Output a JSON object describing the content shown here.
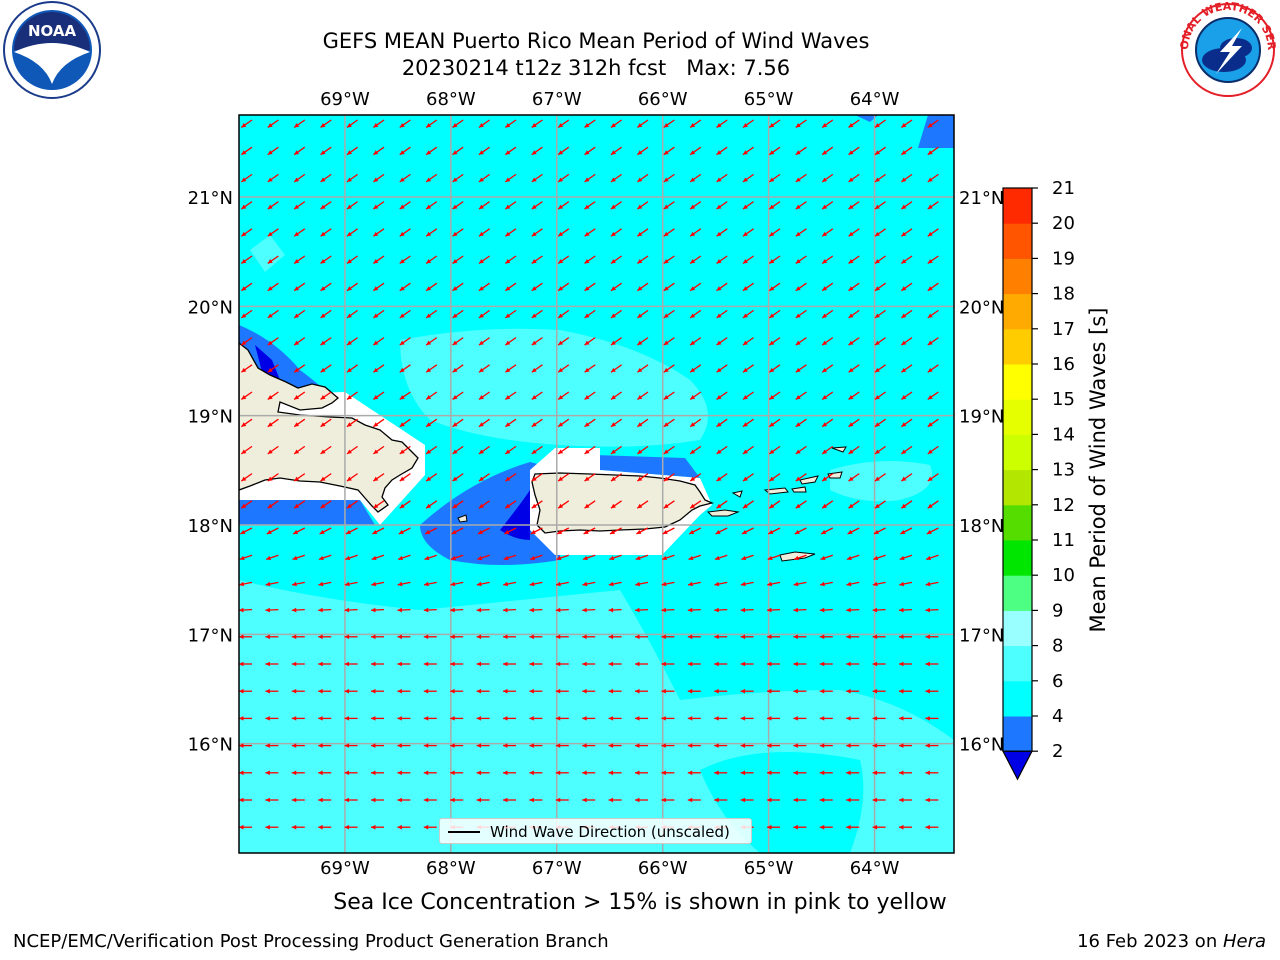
{
  "title": {
    "line1": "GEFS MEAN Puerto Rico Mean Period of Wind Waves",
    "line2": "20230214 t12z 312h fcst   Max: 7.56"
  },
  "map": {
    "lon_labels": [
      "69°W",
      "68°W",
      "67°W",
      "66°W",
      "65°W",
      "64°W"
    ],
    "lat_labels": [
      "21°N",
      "20°N",
      "19°N",
      "18°N",
      "17°N",
      "16°N"
    ],
    "extent": {
      "lon_min": -70.0,
      "lon_max": -63.25,
      "lat_min": 15.0,
      "lat_max": 21.75
    },
    "ocean_color": "#00ffff",
    "land_color": "#efeedc",
    "arrow_color": "#ff0000",
    "grid": true
  },
  "legend": {
    "label": "Wind Wave Direction (unscaled)"
  },
  "colorbar": {
    "label": "Mean Period of Wind Waves [s]",
    "ticks": [
      "2",
      "4",
      "6",
      "8",
      "9",
      "10",
      "11",
      "12",
      "13",
      "14",
      "15",
      "16",
      "17",
      "18",
      "19",
      "20",
      "21"
    ],
    "colors": [
      "#1e78ff",
      "#00ffff",
      "#4dffff",
      "#99ffff",
      "#4dff82",
      "#00e600",
      "#55dd00",
      "#b3e600",
      "#ccff00",
      "#e6ff00",
      "#ffff00",
      "#ffcc00",
      "#ffaa00",
      "#ff8000",
      "#ff5500",
      "#ff2a00"
    ],
    "under_color": "#0000e6"
  },
  "logos": {
    "noaa_text": "NOAA",
    "nws_text": "NATIONAL WEATHER SERVICE"
  },
  "caption": "Sea Ice Concentration > 15% is shown in pink to yellow",
  "footer": {
    "left": "NCEP/EMC/Verification Post Processing Product Generation Branch",
    "right_prefix": "16 Feb 2023 on ",
    "right_machine": "Hera"
  }
}
